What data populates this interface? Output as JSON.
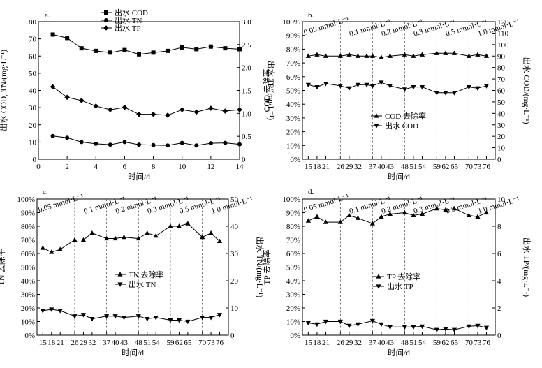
{
  "chart_data": [
    {
      "id": "a",
      "type": "line",
      "panel_label": "a.",
      "xlabel": "时间/d",
      "ylabel": "出水 COD, TN/(mg·L⁻¹)",
      "y2label": "出水 TP/(mg·L⁻¹)",
      "xlim": [
        0,
        14
      ],
      "ylim": [
        0,
        80
      ],
      "y2lim": [
        0,
        3.0
      ],
      "xticks": [
        "0",
        "2",
        "4",
        "6",
        "8",
        "10",
        "12",
        "14"
      ],
      "yticks": [
        "0",
        "10",
        "20",
        "30",
        "40",
        "50",
        "60",
        "70",
        "80"
      ],
      "y2ticks": [
        "0",
        "0.5",
        "1.0",
        "1.5",
        "2.0",
        "2.5",
        "3.0"
      ],
      "series": [
        {
          "name": "出水 COD",
          "marker": "square",
          "axis": "left",
          "x": [
            1,
            2,
            3,
            4,
            5,
            6,
            7,
            8,
            9,
            10,
            11,
            12,
            13,
            14
          ],
          "values": [
            72.5,
            70.5,
            64.5,
            63,
            62,
            63.5,
            61,
            62,
            63,
            65,
            64,
            65.5,
            64.5,
            64
          ]
        },
        {
          "name": "出水 TN",
          "marker": "circle",
          "axis": "left",
          "x": [
            1,
            2,
            3,
            4,
            5,
            6,
            7,
            8,
            9,
            10,
            11,
            12,
            13,
            14
          ],
          "values": [
            13.5,
            12.5,
            10,
            9,
            8.5,
            10,
            8.5,
            8.2,
            8,
            9.5,
            8,
            9.3,
            9.5,
            8.7
          ]
        },
        {
          "name": "出水 TP",
          "marker": "diamond",
          "axis": "right",
          "x": [
            1,
            2,
            3,
            4,
            5,
            6,
            7,
            8,
            9,
            10,
            11,
            12,
            13,
            14
          ],
          "values": [
            1.58,
            1.35,
            1.28,
            1.16,
            1.08,
            1.13,
            0.98,
            0.98,
            0.96,
            1.08,
            1.03,
            1.11,
            1.05,
            1.08
          ]
        }
      ]
    },
    {
      "id": "b",
      "type": "line",
      "panel_label": "b.",
      "xlabel": "时间/d",
      "ylabel": "COD 去除率",
      "y2label": "出水 COD/(mg·L⁻¹)",
      "xlim": [
        13,
        79
      ],
      "ylim": [
        0,
        100
      ],
      "y2lim": [
        0,
        120
      ],
      "xticks": [
        "15",
        "18",
        "21",
        "26",
        "29",
        "32",
        "37",
        "40",
        "43",
        "48",
        "51",
        "54",
        "59",
        "62",
        "65",
        "70",
        "73",
        "76"
      ],
      "yticks": [
        "0%",
        "10%",
        "20%",
        "30%",
        "40%",
        "50%",
        "60%",
        "70%",
        "80%",
        "90%",
        "100%"
      ],
      "y2ticks": [
        "0",
        "10",
        "20",
        "30",
        "40",
        "50",
        "60",
        "70",
        "80",
        "90",
        "100",
        "110",
        "120"
      ],
      "phases": [
        "0.05 mmol·L⁻¹",
        "0.1 mmol·L⁻¹",
        "0.2 mmol·L⁻¹",
        "0.3 mmol·L⁻¹",
        "0.5 mmol·L⁻¹",
        "1.0 mmol·L⁻¹"
      ],
      "phase_boundaries": [
        26,
        37,
        48,
        59,
        70
      ],
      "series": [
        {
          "name": "COD 去除率",
          "marker": "triangle-up",
          "axis": "left",
          "x": [
            15,
            18,
            21,
            26,
            29,
            32,
            35,
            37,
            40,
            43,
            48,
            51,
            54,
            59,
            62,
            65,
            70,
            73,
            76
          ],
          "values": [
            75,
            76,
            75,
            75,
            76,
            75,
            75,
            75,
            74,
            75,
            76,
            75,
            76,
            77,
            77,
            77,
            75,
            76,
            75
          ]
        },
        {
          "name": "出水 COD",
          "marker": "triangle-down",
          "axis": "right",
          "x": [
            15,
            18,
            21,
            26,
            29,
            32,
            35,
            37,
            40,
            43,
            48,
            51,
            54,
            59,
            62,
            65,
            70,
            73,
            76
          ],
          "values": [
            65,
            63,
            66,
            64,
            62,
            65,
            65,
            64,
            67,
            64,
            61,
            63,
            63,
            58,
            58,
            58,
            63,
            62,
            64
          ]
        }
      ]
    },
    {
      "id": "c",
      "type": "line",
      "panel_label": "c.",
      "xlabel": "时间/d",
      "ylabel": "TN 去除率",
      "y2label": "出水 TN/(mg·L⁻¹)",
      "xlim": [
        13,
        79
      ],
      "ylim": [
        0,
        100
      ],
      "y2lim": [
        0,
        50
      ],
      "xticks": [
        "15",
        "18",
        "21",
        "26",
        "29",
        "32",
        "37",
        "40",
        "43",
        "48",
        "51",
        "54",
        "59",
        "62",
        "65",
        "70",
        "73",
        "76"
      ],
      "yticks": [
        "0%",
        "10%",
        "20%",
        "30%",
        "40%",
        "50%",
        "60%",
        "70%",
        "80%",
        "90%",
        "100%"
      ],
      "y2ticks": [
        "0",
        "10",
        "20",
        "30",
        "40",
        "50"
      ],
      "phases": [
        "0.05 mmol·L⁻¹",
        "0.1 mmol·L⁻¹",
        "0.2 mmol·L⁻¹",
        "0.3 mmol·L⁻¹",
        "0.5 mmol·L⁻¹",
        "1.0 mmol·L⁻¹"
      ],
      "phase_boundaries": [
        26,
        37,
        48,
        59,
        70
      ],
      "series": [
        {
          "name": "TN 去除率",
          "marker": "triangle-up",
          "axis": "left",
          "x": [
            15,
            18,
            21,
            26,
            29,
            32,
            37,
            40,
            43,
            48,
            51,
            54,
            59,
            62,
            65,
            70,
            73,
            76
          ],
          "values": [
            64,
            61,
            63,
            70,
            70,
            75,
            71,
            71,
            72,
            71,
            75,
            73,
            80,
            80,
            82,
            72,
            75,
            69
          ]
        },
        {
          "name": "出水 TN",
          "marker": "triangle-down",
          "axis": "right",
          "x": [
            15,
            18,
            21,
            26,
            29,
            32,
            37,
            40,
            43,
            48,
            51,
            54,
            59,
            62,
            65,
            70,
            73,
            76
          ],
          "values": [
            9,
            9.5,
            9,
            7,
            7.5,
            6,
            7,
            7,
            6.5,
            7,
            6,
            6.5,
            5.5,
            5.5,
            5,
            6.5,
            6.5,
            7.5
          ]
        }
      ]
    },
    {
      "id": "d",
      "type": "line",
      "panel_label": "d.",
      "xlabel": "时间/d",
      "ylabel": "TP 去除率",
      "y2label": "出水 TP/(mg·L⁻¹)",
      "xlim": [
        13,
        79
      ],
      "ylim": [
        0,
        100
      ],
      "y2lim": [
        0,
        10
      ],
      "xticks": [
        "15",
        "18",
        "21",
        "26",
        "29",
        "32",
        "37",
        "40",
        "43",
        "48",
        "51",
        "54",
        "59",
        "62",
        "65",
        "70",
        "73",
        "76"
      ],
      "yticks": [
        "0%",
        "10%",
        "20%",
        "30%",
        "40%",
        "50%",
        "60%",
        "70%",
        "80%",
        "90%",
        "100%"
      ],
      "y2ticks": [
        "0",
        "2",
        "4",
        "6",
        "8",
        "10"
      ],
      "phases": [
        "0.05 mmol·L⁻¹",
        "0.1 mmol·L⁻¹",
        "0.2 mmol·L⁻¹",
        "0.3 mmol·L⁻¹",
        "0.5 mmol·L⁻¹",
        "1.0 mmol·L⁻¹"
      ],
      "phase_boundaries": [
        26,
        37,
        48,
        59,
        70
      ],
      "series": [
        {
          "name": "TP 去除率",
          "marker": "triangle-up",
          "axis": "left",
          "x": [
            15,
            18,
            21,
            26,
            29,
            32,
            37,
            40,
            43,
            48,
            51,
            54,
            59,
            62,
            65,
            70,
            73,
            76
          ],
          "values": [
            84,
            87,
            83,
            83,
            88,
            86,
            82,
            87,
            89,
            90,
            88,
            89,
            93,
            92,
            93,
            88,
            87,
            90
          ]
        },
        {
          "name": "出水 TP",
          "marker": "triangle-down",
          "axis": "right",
          "x": [
            15,
            18,
            21,
            26,
            29,
            32,
            37,
            40,
            43,
            48,
            51,
            54,
            59,
            62,
            65,
            70,
            73,
            76
          ],
          "values": [
            0.9,
            0.8,
            1.0,
            1.0,
            0.7,
            0.8,
            1.05,
            0.8,
            0.6,
            0.6,
            0.6,
            0.65,
            0.4,
            0.45,
            0.4,
            0.65,
            0.7,
            0.55
          ]
        }
      ]
    }
  ]
}
